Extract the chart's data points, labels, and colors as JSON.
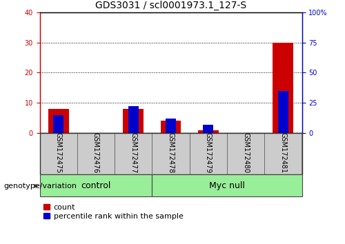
{
  "title": "GDS3031 / scl0001973.1_127-S",
  "samples": [
    "GSM172475",
    "GSM172476",
    "GSM172477",
    "GSM172478",
    "GSM172479",
    "GSM172480",
    "GSM172481"
  ],
  "count_values": [
    8,
    0,
    8,
    4,
    1,
    0,
    30
  ],
  "percentile_values": [
    15,
    0,
    22,
    12,
    7,
    0,
    35
  ],
  "left_ylim": [
    0,
    40
  ],
  "right_ylim": [
    0,
    100
  ],
  "left_yticks": [
    0,
    10,
    20,
    30,
    40
  ],
  "right_yticks": [
    0,
    25,
    50,
    75,
    100
  ],
  "right_yticklabels": [
    "0",
    "25",
    "50",
    "75",
    "100%"
  ],
  "bar_color_red": "#cc0000",
  "bar_color_blue": "#0000cc",
  "label_bg_color": "#cccccc",
  "group1_label": "control",
  "group2_label": "Myc null",
  "group1_indices": [
    0,
    1,
    2
  ],
  "group2_indices": [
    3,
    4,
    5,
    6
  ],
  "group_bg_color": "#99ee99",
  "group_border_color": "#444444",
  "genotype_label": "genotype/variation",
  "legend_count": "count",
  "legend_pct": "percentile rank within the sample",
  "title_fontsize": 10,
  "tick_fontsize": 7,
  "label_fontsize": 8,
  "group_fontsize": 9,
  "red_bar_width": 0.55,
  "blue_bar_width": 0.28
}
